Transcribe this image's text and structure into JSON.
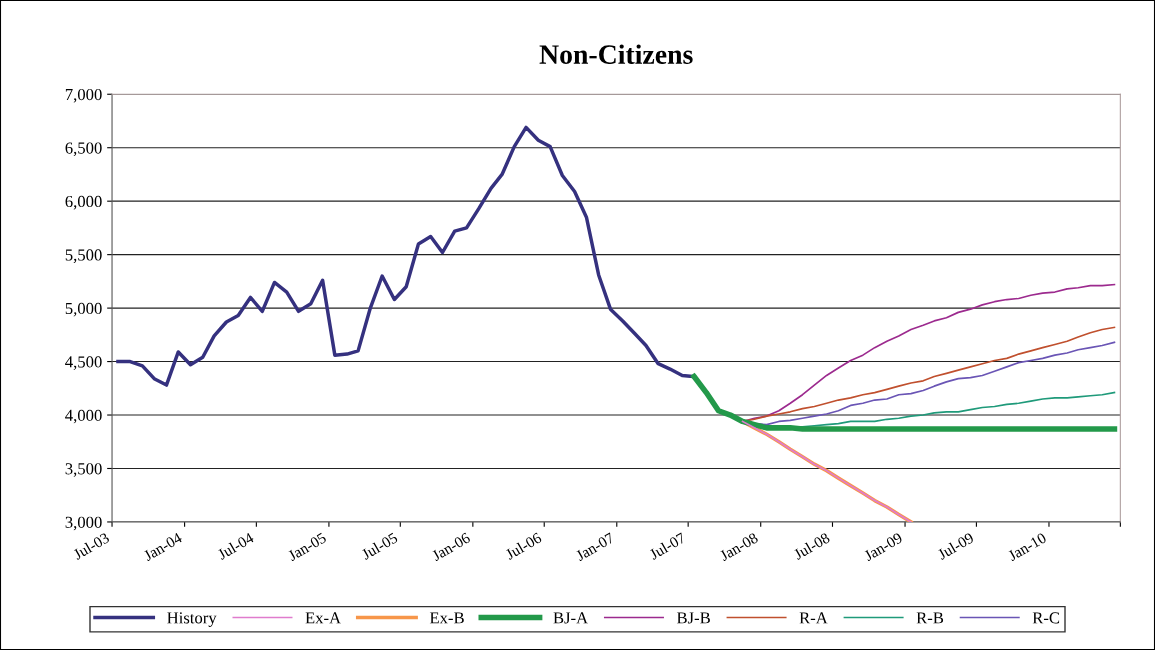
{
  "chart_data": {
    "type": "line",
    "title": "Non-Citizens",
    "xlim": [
      "2003-07",
      "2010-07"
    ],
    "xticks": [
      {
        "value": "2003-07",
        "label": "Jul-03"
      },
      {
        "value": "2004-01",
        "label": "Jan-04"
      },
      {
        "value": "2004-07",
        "label": "Jul-04"
      },
      {
        "value": "2005-01",
        "label": "Jan-05"
      },
      {
        "value": "2005-07",
        "label": "Jul-05"
      },
      {
        "value": "2006-01",
        "label": "Jan-06"
      },
      {
        "value": "2006-07",
        "label": "Jul-06"
      },
      {
        "value": "2007-01",
        "label": "Jan-07"
      },
      {
        "value": "2007-07",
        "label": "Jul-07"
      },
      {
        "value": "2008-01",
        "label": "Jan-08"
      },
      {
        "value": "2008-07",
        "label": "Jul-08"
      },
      {
        "value": "2009-01",
        "label": "Jan-09"
      },
      {
        "value": "2009-07",
        "label": "Jul-09"
      },
      {
        "value": "2010-01",
        "label": "Jan-10"
      },
      {
        "value": "2010-07",
        "label": null
      }
    ],
    "ylim": [
      3000,
      7000
    ],
    "yticks": [
      {
        "value": 3000,
        "label": "3,000"
      },
      {
        "value": 3500,
        "label": "3,500"
      },
      {
        "value": 4000,
        "label": "4,000"
      },
      {
        "value": 4500,
        "label": "4,500"
      },
      {
        "value": 5000,
        "label": "5,000"
      },
      {
        "value": 5500,
        "label": "5,500"
      },
      {
        "value": 6000,
        "label": "6,000"
      },
      {
        "value": 6500,
        "label": "6,500"
      },
      {
        "value": 7000,
        "label": "7,000"
      }
    ],
    "grid": "y",
    "legend": "bottom",
    "marker": "none",
    "line_style": "solid",
    "series": [
      {
        "name": "History",
        "color": "#35317f",
        "x": [
          "2003-07-16",
          "2003-08-16",
          "2003-09-16",
          "2003-10-16",
          "2003-11-16",
          "2003-12-16",
          "2004-01-16",
          "2004-02-16",
          "2004-03-16",
          "2004-04-16",
          "2004-05-16",
          "2004-06-16",
          "2004-07-16",
          "2004-08-16",
          "2004-09-16",
          "2004-10-16",
          "2004-11-16",
          "2004-12-16",
          "2005-01-16",
          "2005-02-16",
          "2005-03-16",
          "2005-04-16",
          "2005-05-16",
          "2005-06-16",
          "2005-07-16",
          "2005-08-16",
          "2005-09-16",
          "2005-10-16",
          "2005-11-16",
          "2005-12-16",
          "2006-01-16",
          "2006-02-16",
          "2006-03-16",
          "2006-04-16",
          "2006-05-16",
          "2006-06-16",
          "2006-07-16",
          "2006-08-16",
          "2006-09-16",
          "2006-10-16",
          "2006-11-16",
          "2006-12-16",
          "2007-01-16",
          "2007-02-16",
          "2007-03-16",
          "2007-04-16",
          "2007-05-16",
          "2007-06-16",
          "2007-07-16"
        ],
        "values": [
          4500,
          4500,
          4460,
          4340,
          4280,
          4590,
          4470,
          4540,
          4740,
          4870,
          4930,
          5100,
          4970,
          5240,
          5150,
          4970,
          5040,
          5260,
          4560,
          4570,
          4600,
          5000,
          5300,
          5080,
          5200,
          5600,
          5670,
          5520,
          5720,
          5750,
          5930,
          6120,
          6250,
          6510,
          6690,
          6570,
          6510,
          6240,
          6090,
          5850,
          5310,
          4990,
          4880,
          4760,
          4650,
          4480,
          4430,
          4370,
          4360
        ]
      },
      {
        "name": "Ex-A",
        "color": "#e07ccd",
        "x": [
          "2007-11-16",
          "2007-12-16",
          "2008-01-16",
          "2008-02-16",
          "2008-03-16",
          "2008-04-16",
          "2008-05-16",
          "2008-06-16",
          "2008-07-16",
          "2008-08-16",
          "2008-09-16",
          "2008-10-16",
          "2008-11-16",
          "2008-12-16",
          "2009-01-16"
        ],
        "values": [
          3940,
          3880,
          3820,
          3750,
          3680,
          3610,
          3540,
          3480,
          3410,
          3340,
          3270,
          3200,
          3140,
          3070,
          3000
        ]
      },
      {
        "name": "Ex-B",
        "color": "#f7964a",
        "x": [
          "2007-11-16",
          "2007-12-16",
          "2008-01-16",
          "2008-02-16",
          "2008-03-16",
          "2008-04-16",
          "2008-05-16",
          "2008-06-16",
          "2008-07-16",
          "2008-08-16",
          "2008-09-16",
          "2008-10-16",
          "2008-11-16",
          "2008-12-16",
          "2009-01-16"
        ],
        "values": [
          3940,
          3880,
          3820,
          3750,
          3680,
          3610,
          3540,
          3480,
          3410,
          3340,
          3270,
          3200,
          3140,
          3070,
          3000
        ]
      },
      {
        "name": "BJ-A",
        "color": "#23994a",
        "x": [
          "2007-07-16",
          "2007-08-16",
          "2007-09-16",
          "2007-10-16",
          "2007-11-16",
          "2007-12-16",
          "2008-01-16",
          "2008-02-16",
          "2008-03-16",
          "2008-04-16",
          "2008-05-16",
          "2008-06-16",
          "2008-07-16",
          "2008-08-16",
          "2008-09-16",
          "2008-10-16",
          "2008-11-16",
          "2008-12-16",
          "2009-01-16",
          "2009-02-16",
          "2009-03-16",
          "2009-04-16",
          "2009-05-16",
          "2009-06-16",
          "2009-07-16",
          "2009-08-16",
          "2009-09-16",
          "2009-10-16",
          "2009-11-16",
          "2009-12-16",
          "2010-01-16",
          "2010-02-16",
          "2010-03-16",
          "2010-04-16",
          "2010-05-16",
          "2010-06-16"
        ],
        "values": [
          4360,
          4210,
          4040,
          4000,
          3940,
          3910,
          3880,
          3880,
          3880,
          3870,
          3870,
          3870,
          3870,
          3870,
          3870,
          3870,
          3870,
          3870,
          3870,
          3870,
          3870,
          3870,
          3870,
          3870,
          3870,
          3870,
          3870,
          3870,
          3870,
          3870,
          3870,
          3870,
          3870,
          3870,
          3870,
          3870
        ]
      },
      {
        "name": "BJ-B",
        "color": "#9c2a8e",
        "x": [
          "2007-11-16",
          "2007-12-16",
          "2008-01-16",
          "2008-02-16",
          "2008-03-16",
          "2008-04-16",
          "2008-05-16",
          "2008-06-16",
          "2008-07-16",
          "2008-08-16",
          "2008-09-16",
          "2008-10-16",
          "2008-11-16",
          "2008-12-16",
          "2009-01-16",
          "2009-02-16",
          "2009-03-16",
          "2009-04-16",
          "2009-05-16",
          "2009-06-16",
          "2009-07-16",
          "2009-08-16",
          "2009-09-16",
          "2009-10-16",
          "2009-11-16",
          "2009-12-16",
          "2010-01-16",
          "2010-02-16",
          "2010-03-16",
          "2010-04-16",
          "2010-05-16",
          "2010-06-16"
        ],
        "values": [
          3940,
          3970,
          3990,
          4040,
          4110,
          4190,
          4280,
          4370,
          4440,
          4510,
          4560,
          4630,
          4690,
          4740,
          4800,
          4840,
          4880,
          4910,
          4960,
          4990,
          5030,
          5060,
          5080,
          5090,
          5120,
          5140,
          5150,
          5180,
          5190,
          5210,
          5210,
          5220
        ]
      },
      {
        "name": "R-A",
        "color": "#c0502e",
        "x": [
          "2007-11-16",
          "2007-12-16",
          "2008-01-16",
          "2008-02-16",
          "2008-03-16",
          "2008-04-16",
          "2008-05-16",
          "2008-06-16",
          "2008-07-16",
          "2008-08-16",
          "2008-09-16",
          "2008-10-16",
          "2008-11-16",
          "2008-12-16",
          "2009-01-16",
          "2009-02-16",
          "2009-03-16",
          "2009-04-16",
          "2009-05-16",
          "2009-06-16",
          "2009-07-16",
          "2009-08-16",
          "2009-09-16",
          "2009-10-16",
          "2009-11-16",
          "2009-12-16",
          "2010-01-16",
          "2010-02-16",
          "2010-03-16",
          "2010-04-16",
          "2010-05-16",
          "2010-06-16"
        ],
        "values": [
          3940,
          3960,
          3990,
          4010,
          4030,
          4060,
          4080,
          4110,
          4140,
          4160,
          4190,
          4210,
          4240,
          4270,
          4300,
          4320,
          4360,
          4390,
          4420,
          4450,
          4480,
          4510,
          4530,
          4570,
          4600,
          4630,
          4660,
          4690,
          4730,
          4770,
          4800,
          4820
        ]
      },
      {
        "name": "R-B",
        "color": "#1f9a7a",
        "x": [
          "2007-11-16",
          "2007-12-16",
          "2008-01-16",
          "2008-02-16",
          "2008-03-16",
          "2008-04-16",
          "2008-05-16",
          "2008-06-16",
          "2008-07-16",
          "2008-08-16",
          "2008-09-16",
          "2008-10-16",
          "2008-11-16",
          "2008-12-16",
          "2009-01-16",
          "2009-02-16",
          "2009-03-16",
          "2009-04-16",
          "2009-05-16",
          "2009-06-16",
          "2009-07-16",
          "2009-08-16",
          "2009-09-16",
          "2009-10-16",
          "2009-11-16",
          "2009-12-16",
          "2010-01-16",
          "2010-02-16",
          "2010-03-16",
          "2010-04-16",
          "2010-05-16",
          "2010-06-16"
        ],
        "values": [
          3940,
          3910,
          3890,
          3880,
          3890,
          3890,
          3900,
          3910,
          3920,
          3940,
          3940,
          3940,
          3960,
          3970,
          3990,
          4000,
          4020,
          4030,
          4030,
          4050,
          4070,
          4080,
          4100,
          4110,
          4130,
          4150,
          4160,
          4160,
          4170,
          4180,
          4190,
          4210
        ]
      },
      {
        "name": "R-C",
        "color": "#6a55b5",
        "x": [
          "2007-11-16",
          "2007-12-16",
          "2008-01-16",
          "2008-02-16",
          "2008-03-16",
          "2008-04-16",
          "2008-05-16",
          "2008-06-16",
          "2008-07-16",
          "2008-08-16",
          "2008-09-16",
          "2008-10-16",
          "2008-11-16",
          "2008-12-16",
          "2009-01-16",
          "2009-02-16",
          "2009-03-16",
          "2009-04-16",
          "2009-05-16",
          "2009-06-16",
          "2009-07-16",
          "2009-08-16",
          "2009-09-16",
          "2009-10-16",
          "2009-11-16",
          "2009-12-16",
          "2010-01-16",
          "2010-02-16",
          "2010-03-16",
          "2010-04-16",
          "2010-05-16",
          "2010-06-16"
        ],
        "values": [
          3940,
          3920,
          3910,
          3940,
          3950,
          3970,
          3990,
          4010,
          4040,
          4090,
          4110,
          4140,
          4150,
          4190,
          4200,
          4230,
          4270,
          4310,
          4340,
          4350,
          4370,
          4410,
          4450,
          4490,
          4510,
          4530,
          4560,
          4580,
          4610,
          4630,
          4650,
          4680
        ]
      }
    ]
  }
}
